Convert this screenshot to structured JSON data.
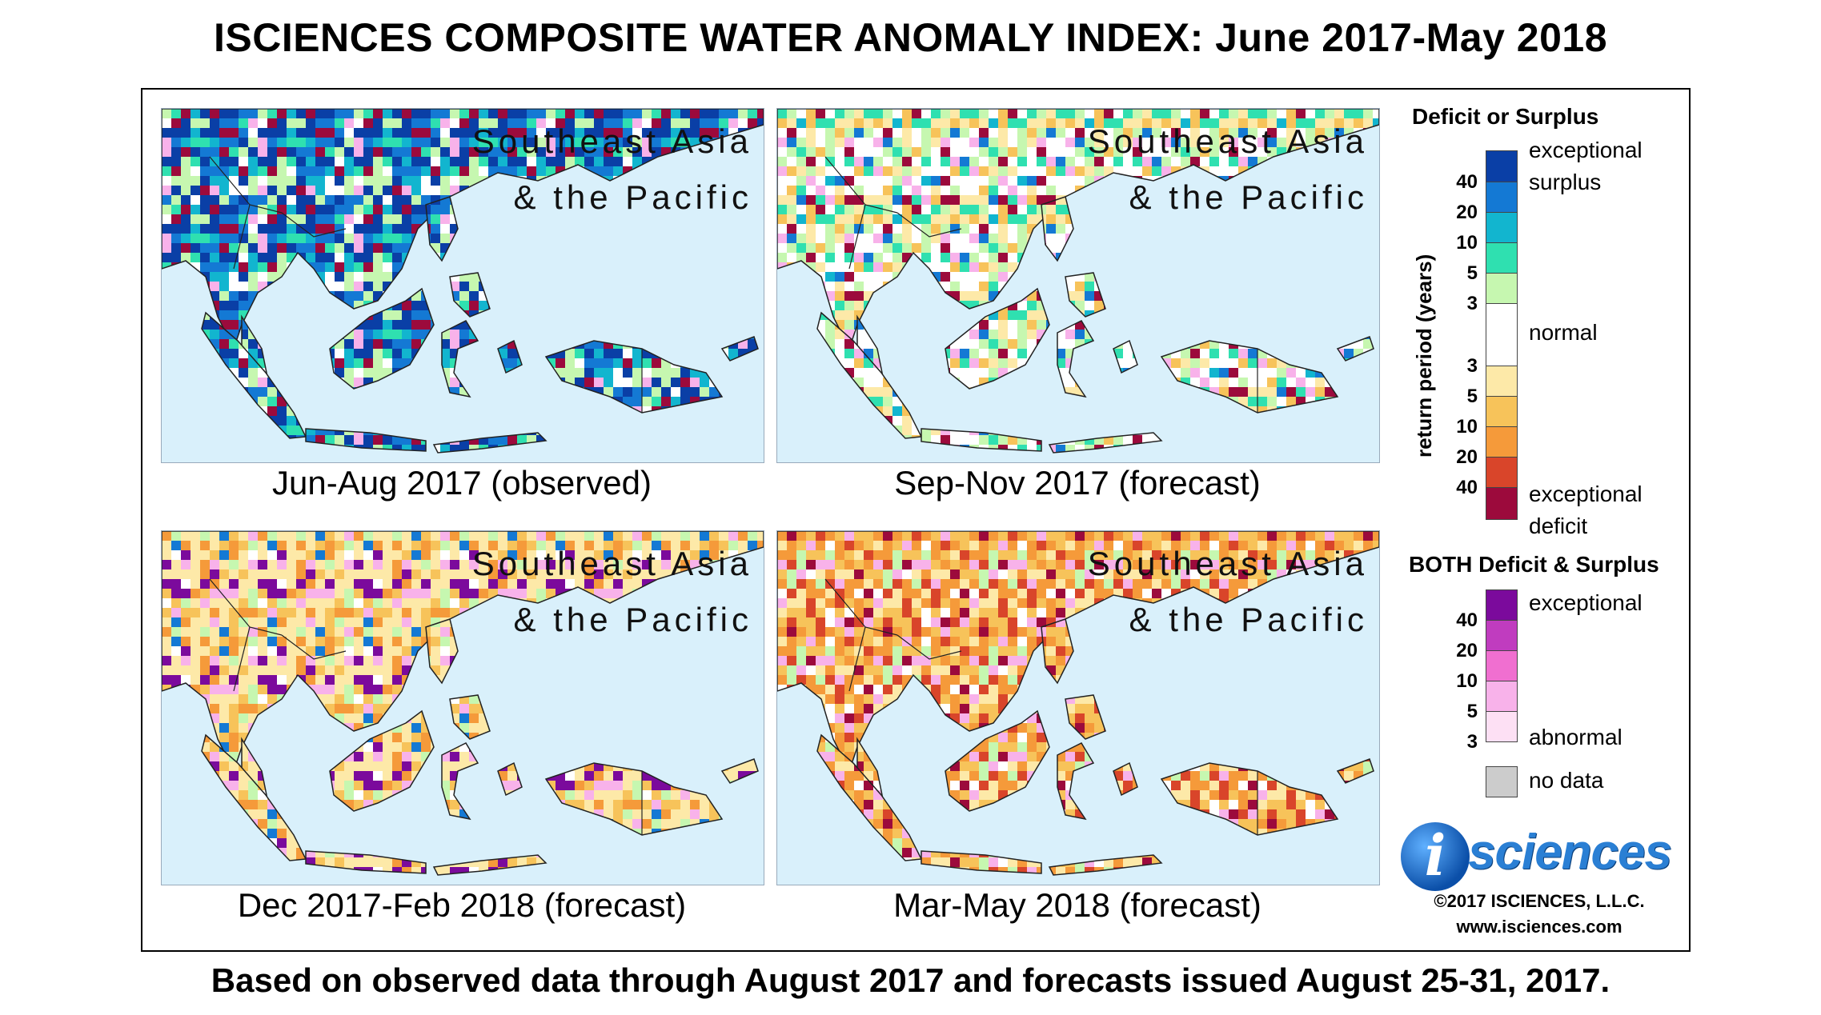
{
  "title": "ISCIENCES COMPOSITE WATER ANOMALY INDEX: June 2017-May 2018",
  "footer": "Based on observed data through August 2017 and forecasts issued August 25-31, 2017.",
  "panels": [
    {
      "region": "Southeast Asia\n& the Pacific",
      "caption": "Jun-Aug 2017 (observed)",
      "scheme": "surplus"
    },
    {
      "region": "Southeast Asia\n& the Pacific",
      "caption": "Sep-Nov 2017 (forecast)",
      "scheme": "mixed"
    },
    {
      "region": "Southeast Asia\n& the Pacific",
      "caption": "Dec 2017-Feb 2018 (forecast)",
      "scheme": "deficit"
    },
    {
      "region": "Southeast Asia\n& the Pacific",
      "caption": "Mar-May 2018 (forecast)",
      "scheme": "severe-deficit"
    }
  ],
  "legend": {
    "title1": "Deficit or Surplus",
    "axis_label": "return period (years)",
    "surplus_ticks": [
      "40",
      "20",
      "10",
      "5",
      "3"
    ],
    "deficit_ticks": [
      "3",
      "5",
      "10",
      "20",
      "40"
    ],
    "exceptional_surplus": "exceptional\nsurplus",
    "normal": "normal",
    "exceptional_deficit": "exceptional\ndeficit",
    "surplus_colors": [
      "#0a3fa6",
      "#1479d4",
      "#12b5cf",
      "#2fe0b0",
      "#c6f7b0"
    ],
    "normal_color": "#ffffff",
    "deficit_colors": [
      "#fde9a8",
      "#f7c35a",
      "#f59a3a",
      "#d9452a",
      "#9c0a3c"
    ],
    "title2": "BOTH Deficit & Surplus",
    "both_ticks": [
      "40",
      "20",
      "10",
      "5",
      "3"
    ],
    "both_exceptional": "exceptional",
    "both_abnormal": "abnormal",
    "both_colors": [
      "#7b0a9c",
      "#c03cbf",
      "#f06fd0",
      "#f8b2ea",
      "#fde0f4"
    ],
    "no_data": "no data",
    "no_data_color": "#cccccc"
  },
  "brand": {
    "logo_i": "i",
    "logo_text": "sciences",
    "copyright": "©2017 ISCIENCES, L.L.C.",
    "url": "www.isciences.com"
  }
}
